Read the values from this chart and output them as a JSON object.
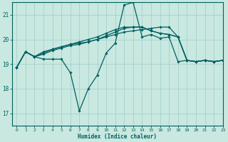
{
  "bg_color": "#c8e8e0",
  "grid_color": "#a0cccc",
  "line_color": "#006060",
  "xlabel": "Humidex (Indice chaleur)",
  "xlim": [
    -0.5,
    23
  ],
  "ylim": [
    16.5,
    21.5
  ],
  "yticks": [
    17,
    18,
    19,
    20,
    21
  ],
  "xticks": [
    0,
    1,
    2,
    3,
    4,
    5,
    6,
    7,
    8,
    9,
    10,
    11,
    12,
    13,
    14,
    15,
    16,
    17,
    18,
    19,
    20,
    21,
    22,
    23
  ],
  "series": [
    {
      "x": [
        0,
        1,
        2,
        3,
        4,
        5,
        6,
        7,
        8,
        9,
        10,
        11,
        12,
        13,
        14,
        15,
        16,
        17,
        18,
        19,
        20,
        21,
        22,
        23
      ],
      "y": [
        18.85,
        19.5,
        19.3,
        19.2,
        19.2,
        19.2,
        18.65,
        17.1,
        18.0,
        18.55,
        19.45,
        19.85,
        21.4,
        21.5,
        20.1,
        20.2,
        20.05,
        20.1,
        19.1,
        19.15,
        19.1,
        19.15,
        19.1,
        19.15
      ]
    },
    {
      "x": [
        0,
        1,
        2,
        3,
        4,
        5,
        6,
        7,
        8,
        9,
        10,
        11,
        12,
        13,
        14,
        15,
        16,
        17,
        18,
        19,
        20,
        21,
        22,
        23
      ],
      "y": [
        18.85,
        19.5,
        19.3,
        19.5,
        19.6,
        19.7,
        19.8,
        19.85,
        19.9,
        20.0,
        20.1,
        20.2,
        20.3,
        20.35,
        20.4,
        20.45,
        20.5,
        20.5,
        20.1,
        19.15,
        19.1,
        19.15,
        19.1,
        19.15
      ]
    },
    {
      "x": [
        0,
        1,
        2,
        3,
        4,
        5,
        6,
        7,
        8,
        9,
        10,
        11,
        12,
        13,
        14,
        15,
        16,
        17,
        18,
        19,
        20,
        21,
        22,
        23
      ],
      "y": [
        18.85,
        19.5,
        19.3,
        19.4,
        19.55,
        19.65,
        19.75,
        19.8,
        19.9,
        20.0,
        20.15,
        20.3,
        20.45,
        20.5,
        20.5,
        20.35,
        20.25,
        20.2,
        20.1,
        19.15,
        19.1,
        19.15,
        19.1,
        19.15
      ]
    },
    {
      "x": [
        0,
        1,
        2,
        3,
        4,
        5,
        6,
        7,
        8,
        9,
        10,
        11,
        12,
        13,
        14,
        15,
        16,
        17,
        18,
        19,
        20,
        21,
        22,
        23
      ],
      "y": [
        18.85,
        19.5,
        19.3,
        19.45,
        19.6,
        19.7,
        19.8,
        19.9,
        20.0,
        20.1,
        20.25,
        20.4,
        20.5,
        20.5,
        20.5,
        20.35,
        20.25,
        20.2,
        20.1,
        19.15,
        19.1,
        19.15,
        19.1,
        19.15
      ]
    }
  ]
}
